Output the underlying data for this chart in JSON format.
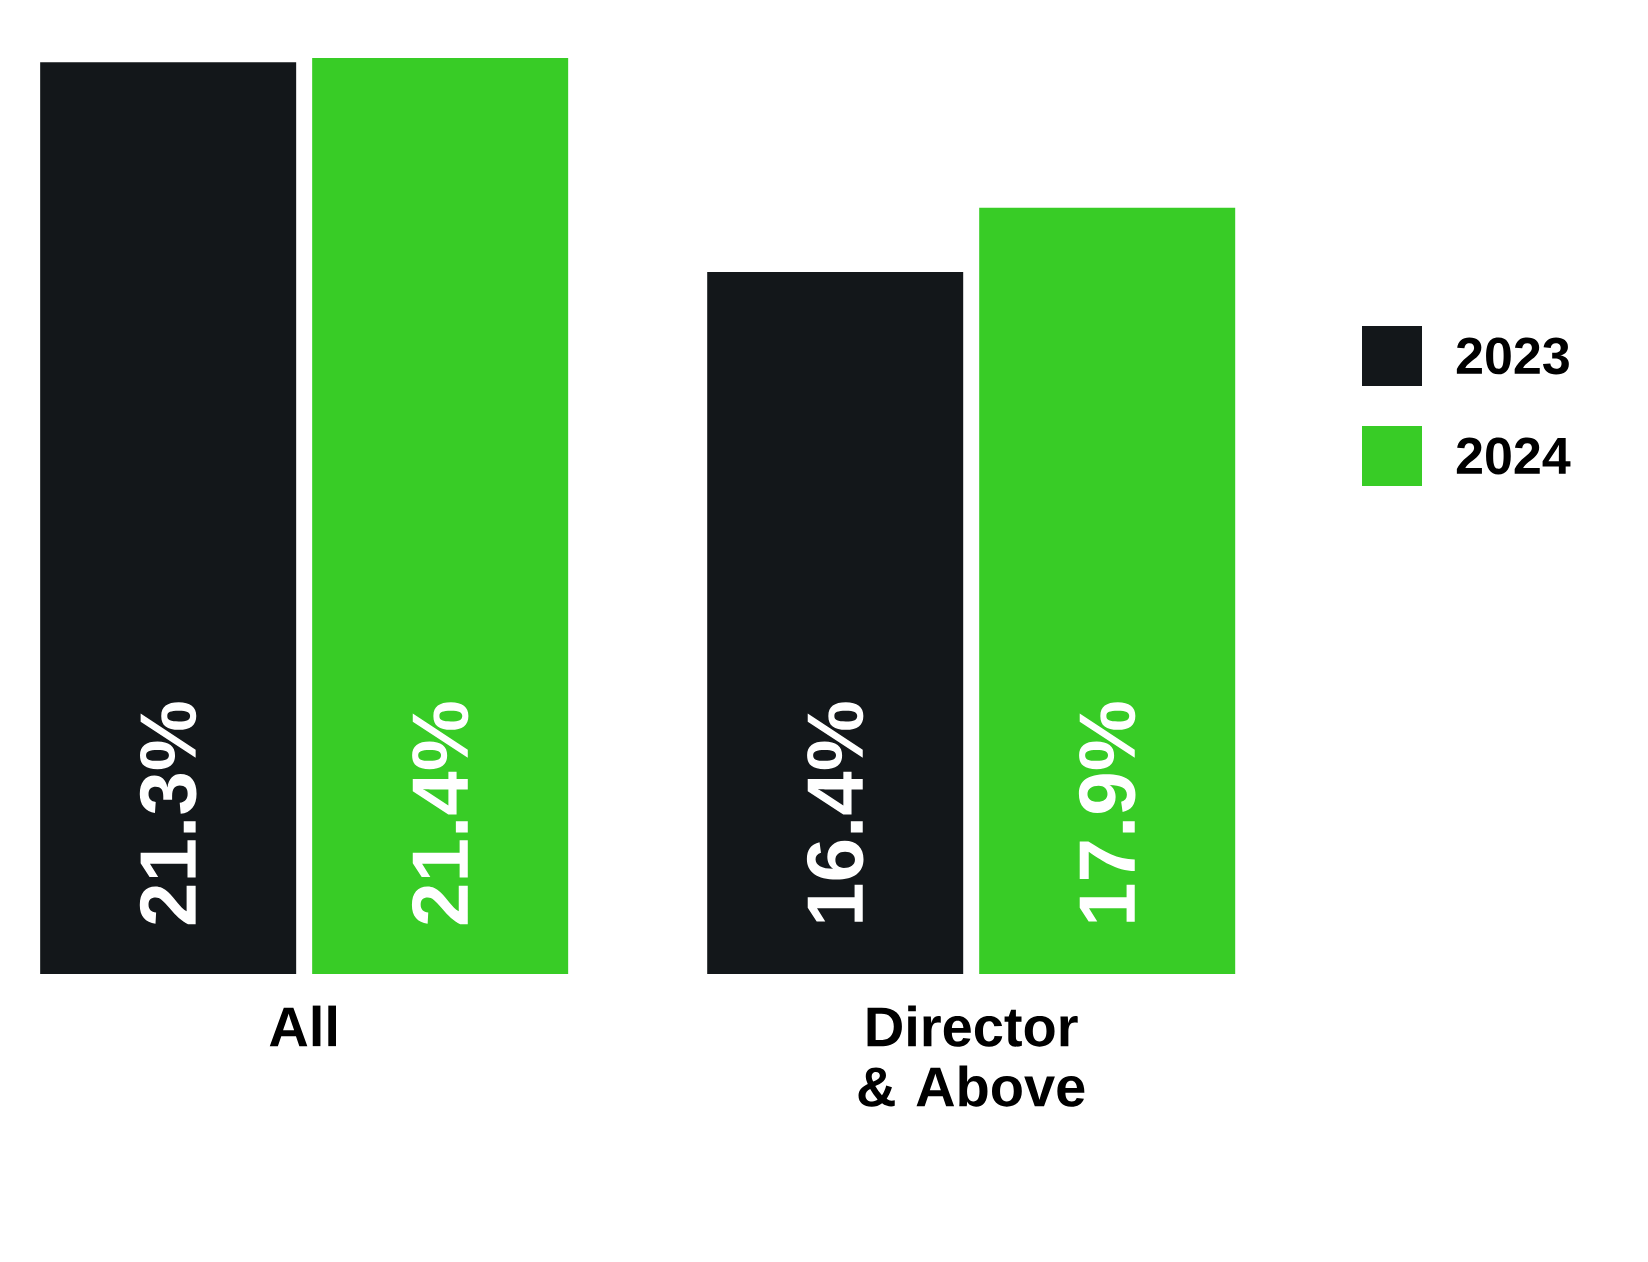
{
  "chart_data": {
    "type": "bar",
    "categories": [
      "All",
      "Director & Above"
    ],
    "series": [
      {
        "name": "2023",
        "color": "#13171a",
        "values": [
          21.3,
          16.4
        ],
        "value_labels": [
          "21.3%",
          "16.4%"
        ]
      },
      {
        "name": "2024",
        "color": "#38cc26",
        "values": [
          21.4,
          17.9
        ],
        "value_labels": [
          "21.4%",
          "17.9%"
        ]
      }
    ],
    "legend": "right"
  }
}
